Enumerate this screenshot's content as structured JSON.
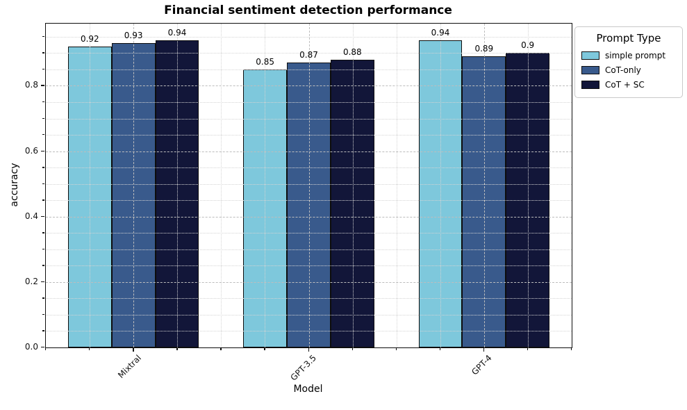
{
  "chart_data": {
    "type": "bar",
    "title": "Financial sentiment detection performance",
    "xlabel": "Model",
    "ylabel": "accuracy",
    "categories": [
      "Mixtral",
      "GPT-3.5",
      "GPT-4"
    ],
    "series": [
      {
        "name": "simple prompt",
        "color": "#7ec8dc",
        "values": [
          0.92,
          0.85,
          0.94
        ],
        "labels": [
          "0.92",
          "0.85",
          "0.94"
        ]
      },
      {
        "name": "CoT-only",
        "color": "#395a8c",
        "values": [
          0.93,
          0.87,
          0.89
        ],
        "labels": [
          "0.93",
          "0.87",
          "0.89"
        ]
      },
      {
        "name": "CoT + SC",
        "color": "#121639",
        "values": [
          0.94,
          0.88,
          0.9
        ],
        "labels": [
          "0.94",
          "0.88",
          "0.9"
        ]
      }
    ],
    "legend_title": "Prompt Type",
    "legend_position": "outside upper right",
    "ylim": [
      0,
      0.99
    ],
    "yticks": [
      0.0,
      0.2,
      0.4,
      0.6,
      0.8
    ],
    "ytick_labels": [
      "0.0",
      "0.2",
      "0.4",
      "0.6",
      "0.8"
    ],
    "yminor_step": 0.05,
    "xminor_step": 0.25,
    "grid": true,
    "bar_edge_color": "#0d0d0d"
  }
}
